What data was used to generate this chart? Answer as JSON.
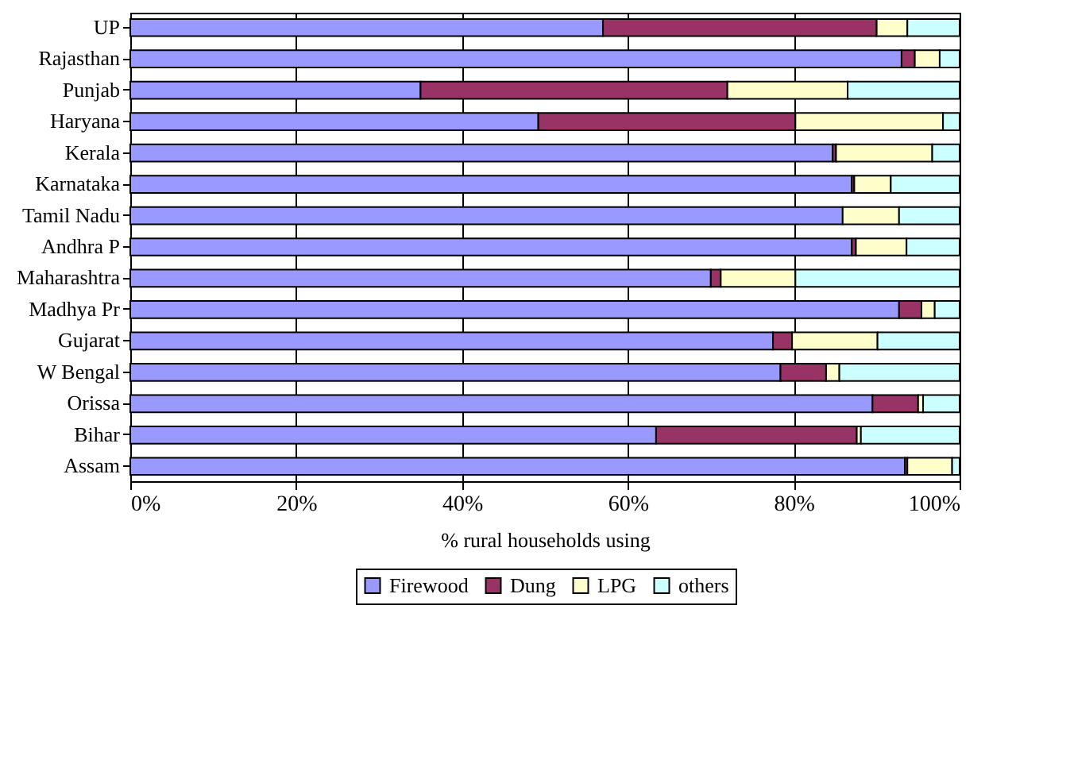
{
  "chart_data": {
    "type": "bar",
    "orientation": "horizontal",
    "stacked": true,
    "xlabel": "% rural households using",
    "categories": [
      "UP",
      "Rajasthan",
      "Punjab",
      "Haryana",
      "Kerala",
      "Karnataka",
      "Tamil Nadu",
      "Andhra P",
      "Maharashtra",
      "Madhya Pr",
      "Gujarat",
      "W Bengal",
      "Orissa",
      "Bihar",
      "Assam"
    ],
    "series": [
      {
        "name": "Firewood",
        "color": "#9999ff",
        "values": [
          57,
          93,
          35,
          49.2,
          84.7,
          87.0,
          85.9,
          87.0,
          70.0,
          92.7,
          77.5,
          78.4,
          89.5,
          63.4,
          93.4
        ]
      },
      {
        "name": "Dung",
        "color": "#993366",
        "values": [
          33,
          1.6,
          37,
          31,
          0.4,
          0.3,
          null,
          0.5,
          1.2,
          2.7,
          2.3,
          5.5,
          5.5,
          24.2,
          0.3
        ]
      },
      {
        "name": "LPG",
        "color": "#ffffcc",
        "values": [
          3.7,
          3.0,
          14.5,
          17.8,
          11.6,
          4.4,
          6.8,
          6.1,
          9.0,
          1.6,
          10.3,
          1.6,
          0.6,
          0.5,
          5.4
        ]
      },
      {
        "name": "others",
        "color": "#ccffff",
        "values": [
          6.3,
          2.4,
          13.5,
          2.0,
          3.3,
          8.3,
          7.3,
          6.4,
          19.8,
          3.0,
          9.9,
          14.5,
          4.4,
          11.9,
          0.9
        ]
      }
    ],
    "xlim": [
      0,
      100
    ],
    "xticks": [
      {
        "value": 0,
        "label": "0%"
      },
      {
        "value": 20,
        "label": "20%"
      },
      {
        "value": 40,
        "label": "40%"
      },
      {
        "value": 60,
        "label": "60%"
      },
      {
        "value": 80,
        "label": "80%"
      },
      {
        "value": 100,
        "label": "100%"
      }
    ],
    "grid": "x",
    "legend": "bottom"
  }
}
